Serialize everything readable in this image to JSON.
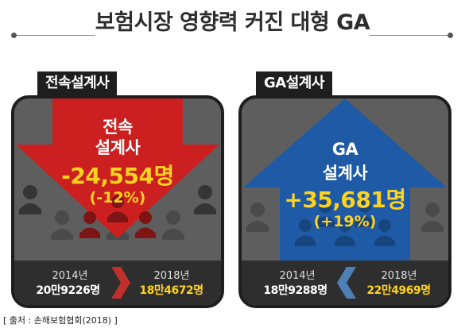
{
  "title": "보험시장 영향력 커진 대형 GA",
  "left": {
    "label": "전속설계사",
    "category_line1": "전속",
    "category_line2": "설계사",
    "change": "-24,554명",
    "change_pct": "(-12%)",
    "year_from": "2014년",
    "value_from": "20만9226명",
    "year_to": "2018년",
    "value_to": "18만4672명",
    "arrow_color": "#cc1f1f",
    "chevron_color": "#c0302b"
  },
  "right": {
    "label": "GA설계사",
    "category_line1": "GA",
    "category_line2": "설계사",
    "change": "+35,681명",
    "change_pct": "(+19%)",
    "year_from": "2014년",
    "value_from": "18만9288명",
    "year_to": "2018년",
    "value_to": "22만4969명",
    "arrow_color": "#1f5aa6",
    "chevron_color": "#4e7fb5"
  },
  "source": "[ 출처 : 손해보험협회(2018) ]"
}
